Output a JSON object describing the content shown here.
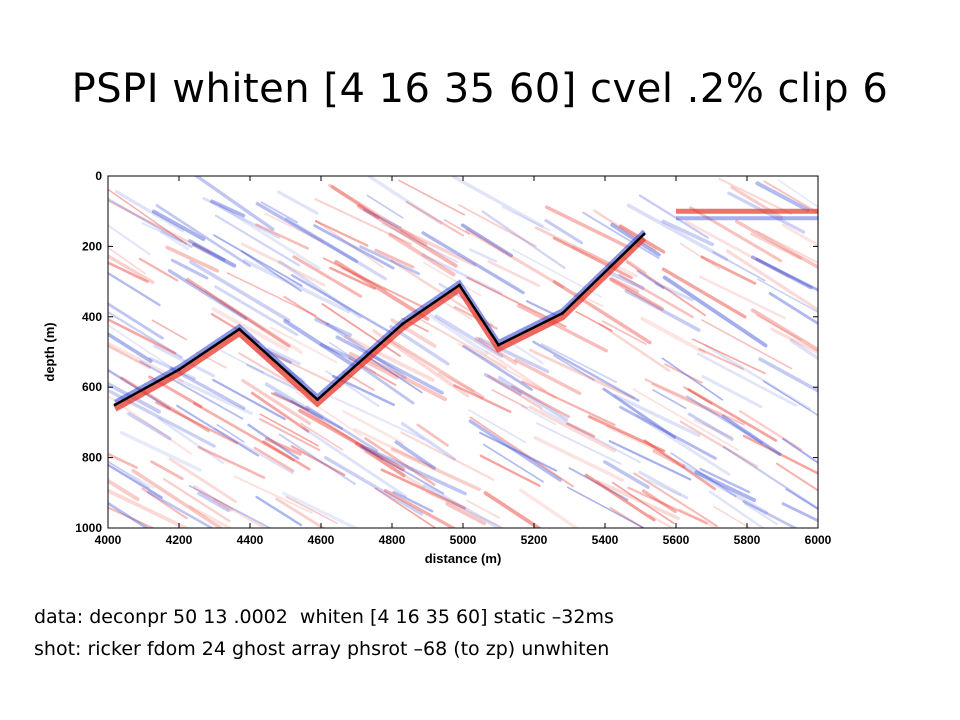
{
  "title": "PSPI whiten [4 16 35 60] cvel .2% clip 6",
  "captions": {
    "line1": "data: deconpr 50 13 .0002  whiten [4 16 35 60] static –32ms",
    "line2": "shot: ricker fdom 24 ghost array phsrot –68 (to zp) unwhiten"
  },
  "colors": {
    "positive": "#e8352a",
    "negative": "#3b4fd6",
    "interpretation": "#000000"
  },
  "chart_data": {
    "type": "heatmap",
    "title": "",
    "xlabel": "distance (m)",
    "ylabel": "depth (m)",
    "xlim": [
      4000,
      6000
    ],
    "ylim": [
      1000,
      0
    ],
    "x_ticks": [
      "4000",
      "4200",
      "4400",
      "4600",
      "4800",
      "5000",
      "5200",
      "5400",
      "5600",
      "5800",
      "6000"
    ],
    "y_ticks": [
      "0",
      "200",
      "400",
      "600",
      "800",
      "1000"
    ],
    "grid": false,
    "colormap": "blue-white-red",
    "interpreted_horizon": [
      {
        "x": 4020,
        "y": 650
      },
      {
        "x": 4200,
        "y": 550
      },
      {
        "x": 4370,
        "y": 435
      },
      {
        "x": 4590,
        "y": 635
      },
      {
        "x": 4830,
        "y": 420
      },
      {
        "x": 4990,
        "y": 310
      },
      {
        "x": 5100,
        "y": 480
      },
      {
        "x": 5280,
        "y": 390
      },
      {
        "x": 5510,
        "y": 165
      }
    ]
  }
}
